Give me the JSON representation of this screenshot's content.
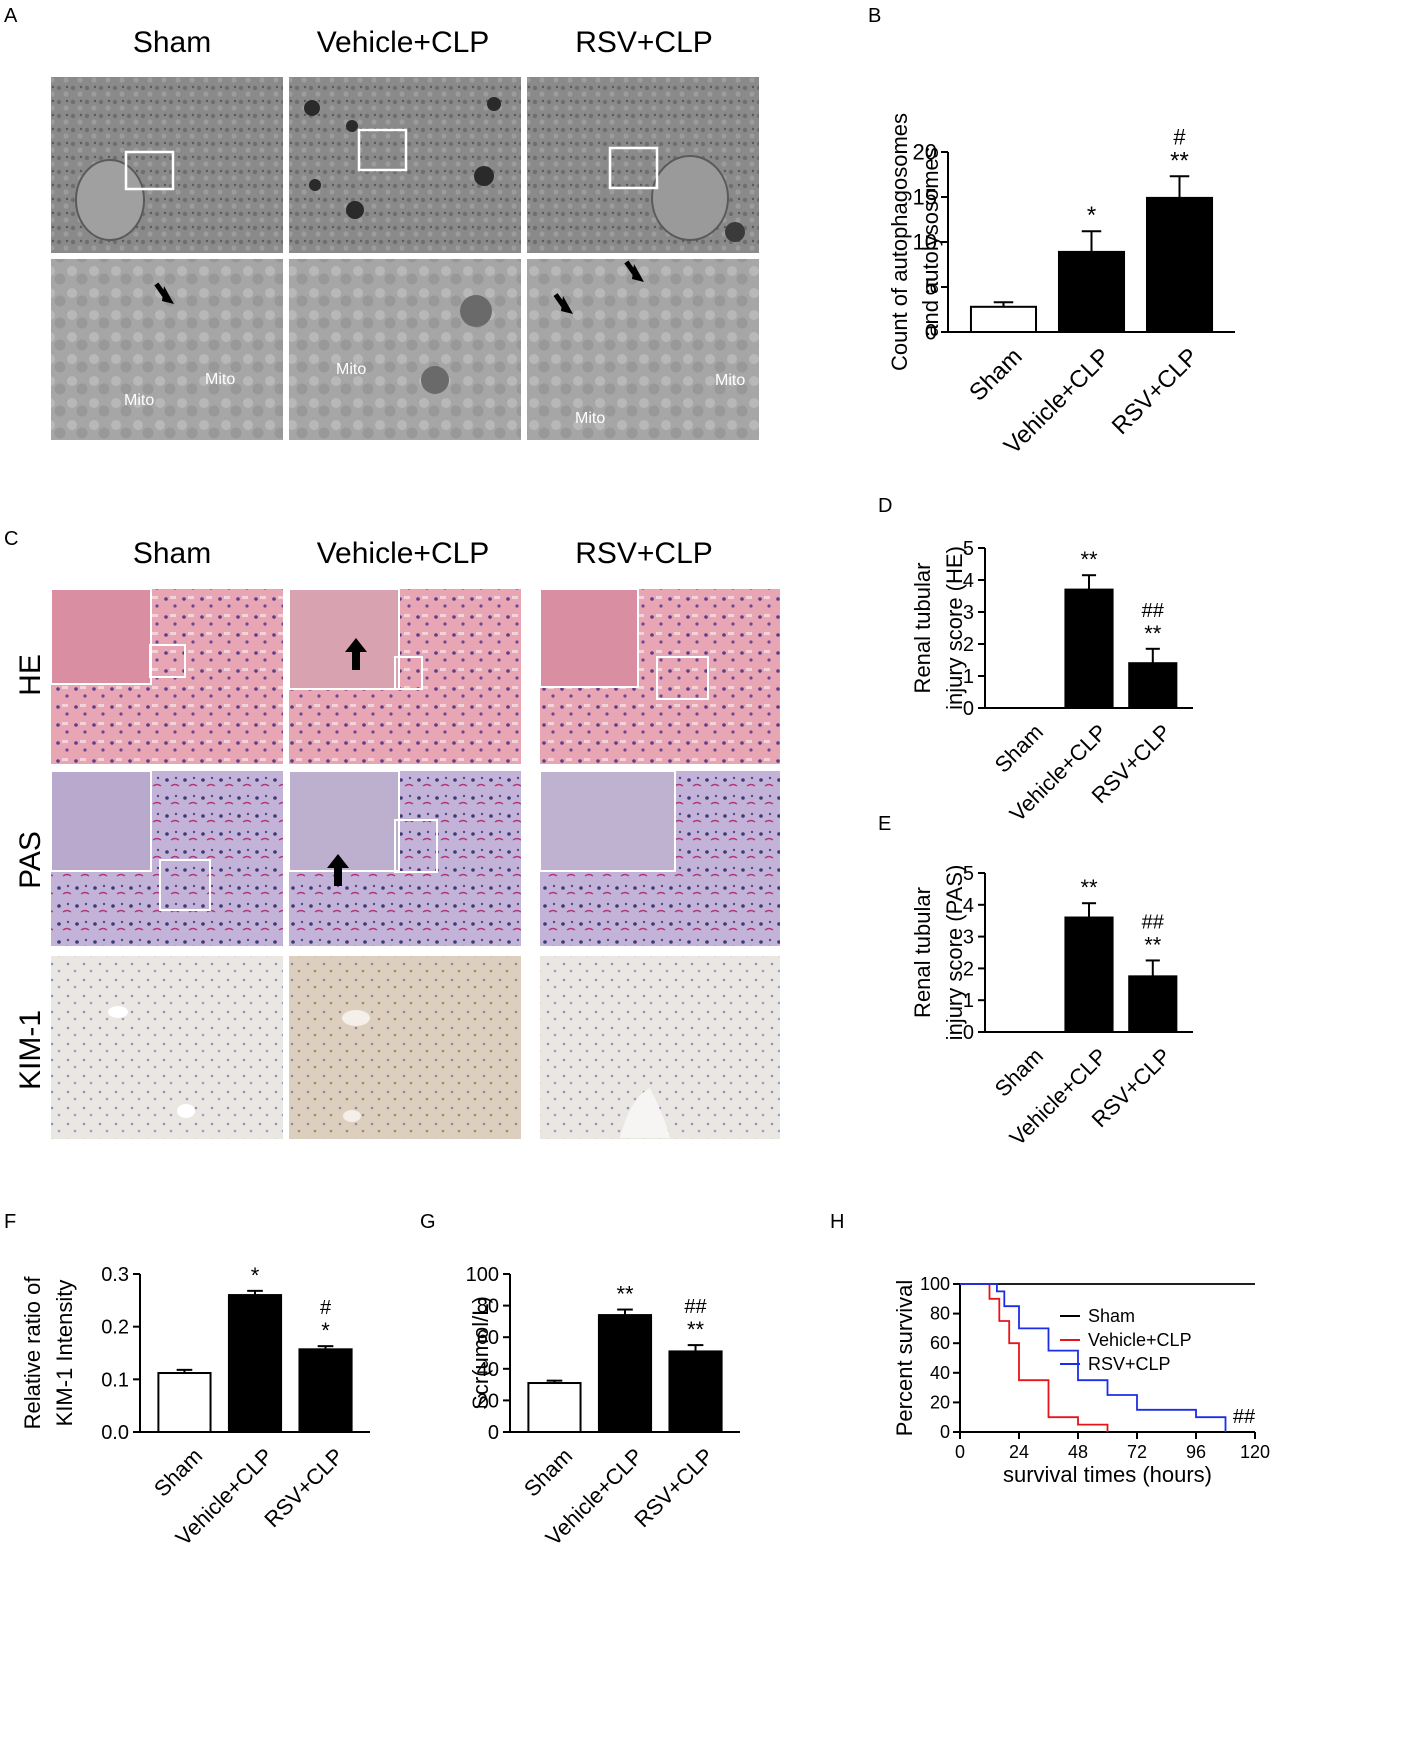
{
  "panel_labels": {
    "A": "A",
    "B": "B",
    "C": "C",
    "D": "D",
    "E": "E",
    "F": "F",
    "G": "G",
    "H": "H"
  },
  "panel_a": {
    "groups": [
      "Sham",
      "Vehicle+CLP",
      "RSV+CLP"
    ],
    "mito_label": "Mito"
  },
  "panel_c": {
    "groups": [
      "Sham",
      "Vehicle+CLP",
      "RSV+CLP"
    ],
    "rows": [
      "HE",
      "PAS",
      "KIM-1"
    ]
  },
  "chart_data": [
    {
      "panel": "B",
      "type": "bar",
      "categories": [
        "Sham",
        "Vehicle+CLP",
        "RSV+CLP"
      ],
      "values": [
        2.8,
        8.9,
        14.9
      ],
      "errors": [
        0.5,
        2.3,
        2.4
      ],
      "annotations": [
        [
          "",
          ""
        ],
        [
          "*",
          ""
        ],
        [
          "**",
          "#"
        ]
      ],
      "ylabel_lines": [
        "Count of autophagosomes",
        "and autolysosomes"
      ],
      "ylim": [
        0,
        20
      ],
      "yticks": [
        0,
        5,
        10,
        15,
        20
      ],
      "bar_fill": [
        "#ffffff",
        "#000000",
        "#000000"
      ]
    },
    {
      "panel": "D",
      "type": "bar",
      "categories": [
        "Sham",
        "Vehicle+CLP",
        "RSV+CLP"
      ],
      "values": [
        0,
        3.7,
        1.4
      ],
      "errors": [
        0,
        0.45,
        0.45
      ],
      "annotations": [
        [
          "",
          ""
        ],
        [
          "**",
          ""
        ],
        [
          "**",
          "##"
        ]
      ],
      "ylabel_lines": [
        "Renal tubular",
        "injury score (HE)"
      ],
      "ylim": [
        0,
        5
      ],
      "yticks": [
        0,
        1,
        2,
        3,
        4,
        5
      ],
      "bar_fill": [
        "#ffffff",
        "#000000",
        "#000000"
      ]
    },
    {
      "panel": "E",
      "type": "bar",
      "categories": [
        "Sham",
        "Vehicle+CLP",
        "RSV+CLP"
      ],
      "values": [
        0,
        3.6,
        1.75
      ],
      "errors": [
        0,
        0.45,
        0.5
      ],
      "annotations": [
        [
          "",
          ""
        ],
        [
          "**",
          ""
        ],
        [
          "**",
          "##"
        ]
      ],
      "ylabel_lines": [
        "Renal tubular",
        "injury score (PAS)"
      ],
      "ylim": [
        0,
        5
      ],
      "yticks": [
        0,
        1,
        2,
        3,
        4,
        5
      ],
      "bar_fill": [
        "#ffffff",
        "#000000",
        "#000000"
      ]
    },
    {
      "panel": "F",
      "type": "bar",
      "categories": [
        "Sham",
        "Vehicle+CLP",
        "RSV+CLP"
      ],
      "values": [
        0.112,
        0.26,
        0.157
      ],
      "errors": [
        0.006,
        0.008,
        0.006
      ],
      "annotations": [
        [
          "",
          ""
        ],
        [
          "*",
          ""
        ],
        [
          "*",
          "#"
        ]
      ],
      "ylabel_lines": [
        "Relative ratio of",
        "KIM-1 Intensity"
      ],
      "ylim": [
        0,
        0.3
      ],
      "yticks": [
        0,
        0.1,
        0.2,
        0.3
      ],
      "ytick_labels": [
        "0.0",
        "0.1",
        "0.2",
        "0.3"
      ],
      "bar_fill": [
        "#ffffff",
        "#000000",
        "#000000"
      ]
    },
    {
      "panel": "G",
      "type": "bar",
      "categories": [
        "Sham",
        "Vehicle+CLP",
        "RSV+CLP"
      ],
      "values": [
        31,
        74,
        51
      ],
      "errors": [
        1.5,
        3.5,
        4
      ],
      "annotations": [
        [
          "",
          ""
        ],
        [
          "**",
          ""
        ],
        [
          "**",
          "##"
        ]
      ],
      "ylabel_lines": [
        "Scr(umol/L)"
      ],
      "ylim": [
        0,
        100
      ],
      "yticks": [
        0,
        20,
        40,
        60,
        80,
        100
      ],
      "bar_fill": [
        "#ffffff",
        "#000000",
        "#000000"
      ]
    },
    {
      "panel": "H",
      "type": "line",
      "subtype": "kaplan-meier",
      "xlabel": "survival times (hours)",
      "ylabel": "Percent survival",
      "xlim": [
        0,
        120
      ],
      "ylim": [
        0,
        100
      ],
      "xticks": [
        0,
        24,
        48,
        72,
        96,
        120
      ],
      "yticks": [
        0,
        20,
        40,
        60,
        80,
        100
      ],
      "legend_position": "top-right",
      "annotation": "##",
      "series": [
        {
          "name": "Sham",
          "color": "#000000",
          "points": [
            [
              0,
              100
            ],
            [
              120,
              100
            ]
          ]
        },
        {
          "name": "Vehicle+CLP",
          "color": "#e8141a",
          "points": [
            [
              0,
              100
            ],
            [
              12,
              100
            ],
            [
              12,
              90
            ],
            [
              16,
              90
            ],
            [
              16,
              75
            ],
            [
              20,
              75
            ],
            [
              20,
              60
            ],
            [
              24,
              60
            ],
            [
              24,
              35
            ],
            [
              36,
              35
            ],
            [
              36,
              10
            ],
            [
              48,
              10
            ],
            [
              48,
              5
            ],
            [
              60,
              5
            ],
            [
              60,
              0
            ]
          ]
        },
        {
          "name": "RSV+CLP",
          "color": "#1a2ee6",
          "points": [
            [
              0,
              100
            ],
            [
              15,
              100
            ],
            [
              15,
              95
            ],
            [
              18,
              95
            ],
            [
              18,
              85
            ],
            [
              24,
              85
            ],
            [
              24,
              70
            ],
            [
              36,
              70
            ],
            [
              36,
              55
            ],
            [
              48,
              55
            ],
            [
              48,
              35
            ],
            [
              60,
              35
            ],
            [
              60,
              25
            ],
            [
              72,
              25
            ],
            [
              72,
              15
            ],
            [
              96,
              15
            ],
            [
              96,
              10
            ],
            [
              108,
              10
            ],
            [
              108,
              0
            ]
          ]
        }
      ]
    }
  ]
}
